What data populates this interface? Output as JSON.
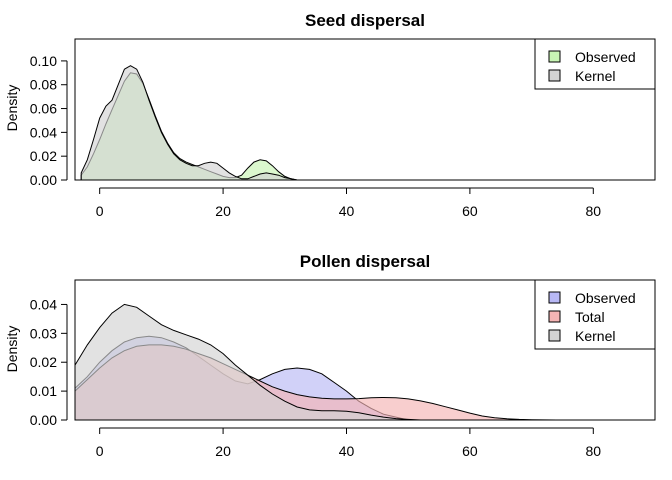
{
  "chart_data": [
    {
      "type": "area",
      "title": "Seed dispersal",
      "ylabel": "Density",
      "xlabel": "",
      "xlim": [
        -4,
        90
      ],
      "ylim": [
        0,
        0.11
      ],
      "xticks": [
        0,
        20,
        40,
        60,
        80
      ],
      "yticks": [
        0.0,
        0.02,
        0.04,
        0.06,
        0.08,
        0.1
      ],
      "ytick_labels": [
        "0.00",
        "0.02",
        "0.04",
        "0.06",
        "0.08",
        "0.10"
      ],
      "legend_position": "top-right",
      "series": [
        {
          "name": "Observed",
          "color": "#c8f5b4",
          "points": [
            [
              -3,
              0.004
            ],
            [
              -2,
              0.011
            ],
            [
              -1,
              0.022
            ],
            [
              0,
              0.034
            ],
            [
              1,
              0.047
            ],
            [
              2,
              0.059
            ],
            [
              3,
              0.071
            ],
            [
              4,
              0.083
            ],
            [
              5,
              0.09
            ],
            [
              6,
              0.089
            ],
            [
              7,
              0.081
            ],
            [
              8,
              0.068
            ],
            [
              9,
              0.054
            ],
            [
              10,
              0.041
            ],
            [
              11,
              0.031
            ],
            [
              12,
              0.023
            ],
            [
              13,
              0.018
            ],
            [
              14,
              0.015
            ],
            [
              15,
              0.013
            ],
            [
              16,
              0.011
            ],
            [
              17,
              0.009
            ],
            [
              18,
              0.007
            ],
            [
              19,
              0.005
            ],
            [
              20,
              0.003
            ],
            [
              21,
              0.002
            ],
            [
              22,
              0.002
            ],
            [
              23,
              0.004
            ],
            [
              24,
              0.01
            ],
            [
              25,
              0.015
            ],
            [
              26,
              0.017
            ],
            [
              27,
              0.016
            ],
            [
              28,
              0.012
            ],
            [
              29,
              0.007
            ],
            [
              30,
              0.003
            ],
            [
              31,
              0.001
            ],
            [
              32,
              0.0
            ]
          ]
        },
        {
          "name": "Kernel",
          "color": "#d3d3d3",
          "points": [
            [
              -3,
              0.006
            ],
            [
              -2,
              0.017
            ],
            [
              -1,
              0.034
            ],
            [
              0,
              0.052
            ],
            [
              1,
              0.062
            ],
            [
              2,
              0.067
            ],
            [
              3,
              0.08
            ],
            [
              4,
              0.093
            ],
            [
              5,
              0.096
            ],
            [
              6,
              0.093
            ],
            [
              7,
              0.082
            ],
            [
              8,
              0.067
            ],
            [
              9,
              0.053
            ],
            [
              10,
              0.04
            ],
            [
              11,
              0.03
            ],
            [
              12,
              0.022
            ],
            [
              13,
              0.017
            ],
            [
              14,
              0.014
            ],
            [
              15,
              0.012
            ],
            [
              16,
              0.012
            ],
            [
              17,
              0.014
            ],
            [
              18,
              0.015
            ],
            [
              19,
              0.014
            ],
            [
              20,
              0.01
            ],
            [
              21,
              0.006
            ],
            [
              22,
              0.003
            ],
            [
              23,
              0.001
            ],
            [
              24,
              0.001
            ],
            [
              25,
              0.003
            ],
            [
              26,
              0.005
            ],
            [
              27,
              0.006
            ],
            [
              28,
              0.005
            ],
            [
              29,
              0.004
            ],
            [
              30,
              0.002
            ],
            [
              31,
              0.001
            ],
            [
              32,
              0.0
            ]
          ]
        }
      ]
    },
    {
      "type": "area",
      "title": "Pollen dispersal",
      "ylabel": "Density",
      "xlabel": "",
      "xlim": [
        -4,
        90
      ],
      "ylim": [
        0,
        0.045
      ],
      "xticks": [
        0,
        20,
        40,
        60,
        80
      ],
      "yticks": [
        0.0,
        0.01,
        0.02,
        0.03,
        0.04
      ],
      "ytick_labels": [
        "0.00",
        "0.01",
        "0.02",
        "0.03",
        "0.04"
      ],
      "legend_position": "top-right",
      "series": [
        {
          "name": "Observed",
          "color": "#b8b8f5",
          "points": [
            [
              -4,
              0.011
            ],
            [
              -2,
              0.015
            ],
            [
              0,
              0.02
            ],
            [
              2,
              0.024
            ],
            [
              4,
              0.027
            ],
            [
              6,
              0.0285
            ],
            [
              8,
              0.029
            ],
            [
              10,
              0.0285
            ],
            [
              12,
              0.027
            ],
            [
              14,
              0.025
            ],
            [
              16,
              0.022
            ],
            [
              18,
              0.019
            ],
            [
              20,
              0.016
            ],
            [
              22,
              0.0135
            ],
            [
              24,
              0.0125
            ],
            [
              26,
              0.014
            ],
            [
              28,
              0.016
            ],
            [
              30,
              0.0175
            ],
            [
              32,
              0.018
            ],
            [
              34,
              0.0175
            ],
            [
              36,
              0.016
            ],
            [
              38,
              0.013
            ],
            [
              40,
              0.01
            ],
            [
              42,
              0.0065
            ],
            [
              44,
              0.004
            ],
            [
              46,
              0.002
            ],
            [
              48,
              0.001
            ],
            [
              50,
              0.0
            ],
            [
              56,
              0.0
            ],
            [
              64,
              0.0
            ],
            [
              70,
              0.0
            ],
            [
              78,
              0.0
            ]
          ]
        },
        {
          "name": "Total",
          "color": "#f5b4b4",
          "points": [
            [
              -4,
              0.01
            ],
            [
              -2,
              0.014
            ],
            [
              0,
              0.018
            ],
            [
              2,
              0.0215
            ],
            [
              4,
              0.024
            ],
            [
              6,
              0.0255
            ],
            [
              8,
              0.026
            ],
            [
              10,
              0.026
            ],
            [
              12,
              0.0255
            ],
            [
              14,
              0.0245
            ],
            [
              16,
              0.023
            ],
            [
              18,
              0.0215
            ],
            [
              20,
              0.0195
            ],
            [
              22,
              0.0175
            ],
            [
              24,
              0.0155
            ],
            [
              26,
              0.0135
            ],
            [
              28,
              0.0115
            ],
            [
              30,
              0.01
            ],
            [
              32,
              0.0088
            ],
            [
              34,
              0.008
            ],
            [
              36,
              0.0075
            ],
            [
              38,
              0.0073
            ],
            [
              40,
              0.0073
            ],
            [
              42,
              0.0074
            ],
            [
              44,
              0.0077
            ],
            [
              46,
              0.0078
            ],
            [
              48,
              0.0077
            ],
            [
              50,
              0.0073
            ],
            [
              52,
              0.0066
            ],
            [
              54,
              0.0057
            ],
            [
              56,
              0.0046
            ],
            [
              58,
              0.0035
            ],
            [
              60,
              0.0024
            ],
            [
              62,
              0.0014
            ],
            [
              64,
              0.0008
            ],
            [
              66,
              0.0004
            ],
            [
              68,
              0.0002
            ],
            [
              70,
              0.0001
            ],
            [
              74,
              0.0
            ],
            [
              78,
              0.0
            ]
          ]
        },
        {
          "name": "Kernel",
          "color": "#d3d3d3",
          "points": [
            [
              -4,
              0.019
            ],
            [
              -2,
              0.026
            ],
            [
              0,
              0.032
            ],
            [
              2,
              0.037
            ],
            [
              4,
              0.04
            ],
            [
              6,
              0.039
            ],
            [
              8,
              0.036
            ],
            [
              10,
              0.033
            ],
            [
              12,
              0.031
            ],
            [
              14,
              0.0295
            ],
            [
              16,
              0.028
            ],
            [
              18,
              0.026
            ],
            [
              20,
              0.023
            ],
            [
              22,
              0.019
            ],
            [
              24,
              0.0155
            ],
            [
              26,
              0.012
            ],
            [
              28,
              0.009
            ],
            [
              30,
              0.0065
            ],
            [
              32,
              0.0045
            ],
            [
              34,
              0.0035
            ],
            [
              36,
              0.0032
            ],
            [
              38,
              0.0032
            ],
            [
              40,
              0.003
            ],
            [
              42,
              0.0025
            ],
            [
              44,
              0.0017
            ],
            [
              46,
              0.001
            ],
            [
              48,
              0.0005
            ],
            [
              50,
              0.0002
            ],
            [
              52,
              0.0
            ],
            [
              60,
              0.0
            ],
            [
              70,
              0.0
            ],
            [
              78,
              0.0
            ]
          ]
        }
      ]
    }
  ]
}
